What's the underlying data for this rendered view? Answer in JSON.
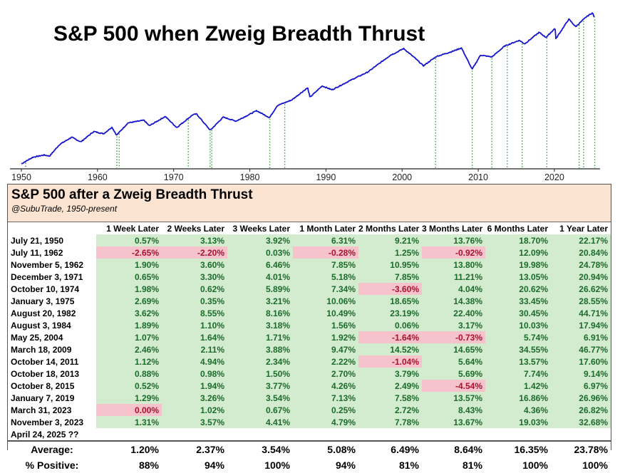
{
  "chart_data": {
    "type": "line",
    "title": "S&P 500 when Zweig Breadth Thrust",
    "scale": "log",
    "x_ticks": [
      1950,
      1960,
      1970,
      1980,
      1990,
      2000,
      2010,
      2020
    ],
    "xlim": [
      1948.5,
      2026
    ],
    "series": [
      {
        "name": "S&P 500",
        "color": "#1515cc",
        "points": [
          [
            1950.0,
            17
          ],
          [
            1951.5,
            22
          ],
          [
            1953.0,
            24
          ],
          [
            1953.7,
            23
          ],
          [
            1955.0,
            36
          ],
          [
            1956.6,
            48
          ],
          [
            1957.8,
            40
          ],
          [
            1959.5,
            60
          ],
          [
            1960.8,
            55
          ],
          [
            1961.9,
            71
          ],
          [
            1962.5,
            52
          ],
          [
            1964.0,
            84
          ],
          [
            1966.1,
            93
          ],
          [
            1966.8,
            75
          ],
          [
            1968.9,
            108
          ],
          [
            1970.4,
            70
          ],
          [
            1972.5,
            115
          ],
          [
            1973.0,
            119
          ],
          [
            1974.8,
            63
          ],
          [
            1976.5,
            105
          ],
          [
            1978.2,
            90
          ],
          [
            1980.9,
            135
          ],
          [
            1982.6,
            103
          ],
          [
            1983.6,
            165
          ],
          [
            1985.5,
            205
          ],
          [
            1987.6,
            330
          ],
          [
            1987.9,
            228
          ],
          [
            1989.5,
            355
          ],
          [
            1990.8,
            305
          ],
          [
            1993.5,
            460
          ],
          [
            1995.5,
            610
          ],
          [
            1997.5,
            950
          ],
          [
            1998.5,
            1185
          ],
          [
            1999.2,
            1300
          ],
          [
            2000.2,
            1527
          ],
          [
            2001.7,
            1050
          ],
          [
            2002.8,
            777
          ],
          [
            2004.5,
            1120
          ],
          [
            2006.5,
            1350
          ],
          [
            2007.8,
            1565
          ],
          [
            2009.2,
            677
          ],
          [
            2010.3,
            1180
          ],
          [
            2011.8,
            1100
          ],
          [
            2013.5,
            1690
          ],
          [
            2015.4,
            2100
          ],
          [
            2016.1,
            1829
          ],
          [
            2018.0,
            2870
          ],
          [
            2018.9,
            2350
          ],
          [
            2020.1,
            3380
          ],
          [
            2020.2,
            2237
          ],
          [
            2021.9,
            4797
          ],
          [
            2022.8,
            3577
          ],
          [
            2024.2,
            5250
          ],
          [
            2025.0,
            6144
          ],
          [
            2025.3,
            5000
          ]
        ]
      }
    ],
    "thrust_years": [
      1950.55,
      1962.53,
      1962.85,
      1971.92,
      1974.78,
      1975.01,
      1982.63,
      1984.59,
      2004.4,
      2009.21,
      2011.79,
      2013.8,
      2015.77,
      2019.02,
      2023.25,
      2023.84,
      2025.31
    ]
  },
  "table": {
    "title": "S&P 500 after a Zweig Breadth Thrust",
    "subtitle": "@SubuTrade, 1950-present",
    "headers": [
      "",
      "1 Week Later",
      "2 Weeks Later",
      "3 Weeks Later",
      "1 Month Later",
      "2 Months Later",
      "3 Months Later",
      "6 Months Later",
      "1 Year Later"
    ],
    "rows": [
      {
        "date": "July 21, 1950",
        "values": [
          "0.57%",
          "3.13%",
          "3.92%",
          "6.31%",
          "9.21%",
          "13.76%",
          "18.70%",
          "22.17%"
        ]
      },
      {
        "date": "July 11, 1962",
        "values": [
          "-2.65%",
          "-2.20%",
          "0.03%",
          "-0.28%",
          "1.25%",
          "-0.92%",
          "12.09%",
          "20.84%"
        ]
      },
      {
        "date": "November 5, 1962",
        "values": [
          "1.90%",
          "3.60%",
          "6.46%",
          "7.85%",
          "10.95%",
          "13.80%",
          "19.98%",
          "24.78%"
        ]
      },
      {
        "date": "December 3, 1971",
        "values": [
          "0.65%",
          "3.30%",
          "4.01%",
          "5.18%",
          "7.85%",
          "11.21%",
          "13.05%",
          "20.94%"
        ]
      },
      {
        "date": "October 10, 1974",
        "values": [
          "1.98%",
          "0.62%",
          "5.89%",
          "7.34%",
          "-3.60%",
          "4.04%",
          "20.62%",
          "26.62%"
        ]
      },
      {
        "date": "January 3, 1975",
        "values": [
          "2.69%",
          "0.35%",
          "3.21%",
          "10.06%",
          "18.65%",
          "14.38%",
          "33.45%",
          "28.55%"
        ]
      },
      {
        "date": "August 20, 1982",
        "values": [
          "3.62%",
          "8.55%",
          "8.16%",
          "10.49%",
          "23.19%",
          "22.40%",
          "30.45%",
          "44.71%"
        ]
      },
      {
        "date": "August 3, 1984",
        "values": [
          "1.89%",
          "1.10%",
          "3.18%",
          "1.56%",
          "0.06%",
          "3.17%",
          "10.03%",
          "17.94%"
        ]
      },
      {
        "date": "May 25, 2004",
        "values": [
          "1.07%",
          "1.64%",
          "1.71%",
          "1.92%",
          "-1.64%",
          "-0.73%",
          "5.74%",
          "6.91%"
        ]
      },
      {
        "date": "March 18, 2009",
        "values": [
          "2.46%",
          "2.11%",
          "3.88%",
          "9.47%",
          "14.52%",
          "14.65%",
          "34.55%",
          "46.77%"
        ]
      },
      {
        "date": "October 14, 2011",
        "values": [
          "1.12%",
          "4.94%",
          "2.34%",
          "2.22%",
          "-1.04%",
          "5.64%",
          "13.57%",
          "17.60%"
        ]
      },
      {
        "date": "October 18, 2013",
        "values": [
          "0.88%",
          "0.98%",
          "1.50%",
          "2.70%",
          "3.79%",
          "5.69%",
          "7.74%",
          "9.14%"
        ]
      },
      {
        "date": "October 8, 2015",
        "values": [
          "0.52%",
          "1.94%",
          "3.77%",
          "4.26%",
          "2.49%",
          "-4.54%",
          "1.42%",
          "6.97%"
        ]
      },
      {
        "date": "January 7, 2019",
        "values": [
          "1.29%",
          "3.26%",
          "3.54%",
          "7.13%",
          "7.58%",
          "13.57%",
          "16.86%",
          "26.96%"
        ]
      },
      {
        "date": "March 31, 2023",
        "values": [
          "0.00%",
          "1.02%",
          "0.67%",
          "0.25%",
          "2.72%",
          "8.43%",
          "4.36%",
          "26.82%"
        ]
      },
      {
        "date": "November 3, 2023",
        "values": [
          "1.31%",
          "3.57%",
          "4.41%",
          "4.79%",
          "7.78%",
          "13.67%",
          "19.03%",
          "32.68%"
        ]
      }
    ],
    "pending_row": "April 24, 2025 ??",
    "average": {
      "label": "Average:",
      "values": [
        "1.20%",
        "2.37%",
        "3.54%",
        "5.08%",
        "6.49%",
        "8.64%",
        "16.35%",
        "23.78%"
      ]
    },
    "positive": {
      "label": "% Positive:",
      "values": [
        "88%",
        "94%",
        "100%",
        "94%",
        "81%",
        "81%",
        "100%",
        "100%"
      ]
    },
    "red_cells": [
      [
        1,
        0
      ],
      [
        1,
        1
      ],
      [
        1,
        3
      ],
      [
        1,
        5
      ],
      [
        4,
        4
      ],
      [
        8,
        4
      ],
      [
        8,
        5
      ],
      [
        10,
        4
      ],
      [
        12,
        5
      ],
      [
        14,
        0
      ]
    ]
  },
  "colors": {
    "line": "#1515cc",
    "thrust": "#3aa03a",
    "green_cell": "#d3ecd0",
    "red_cell": "#f6c3cc",
    "header_bg": "#fbe5d2"
  }
}
